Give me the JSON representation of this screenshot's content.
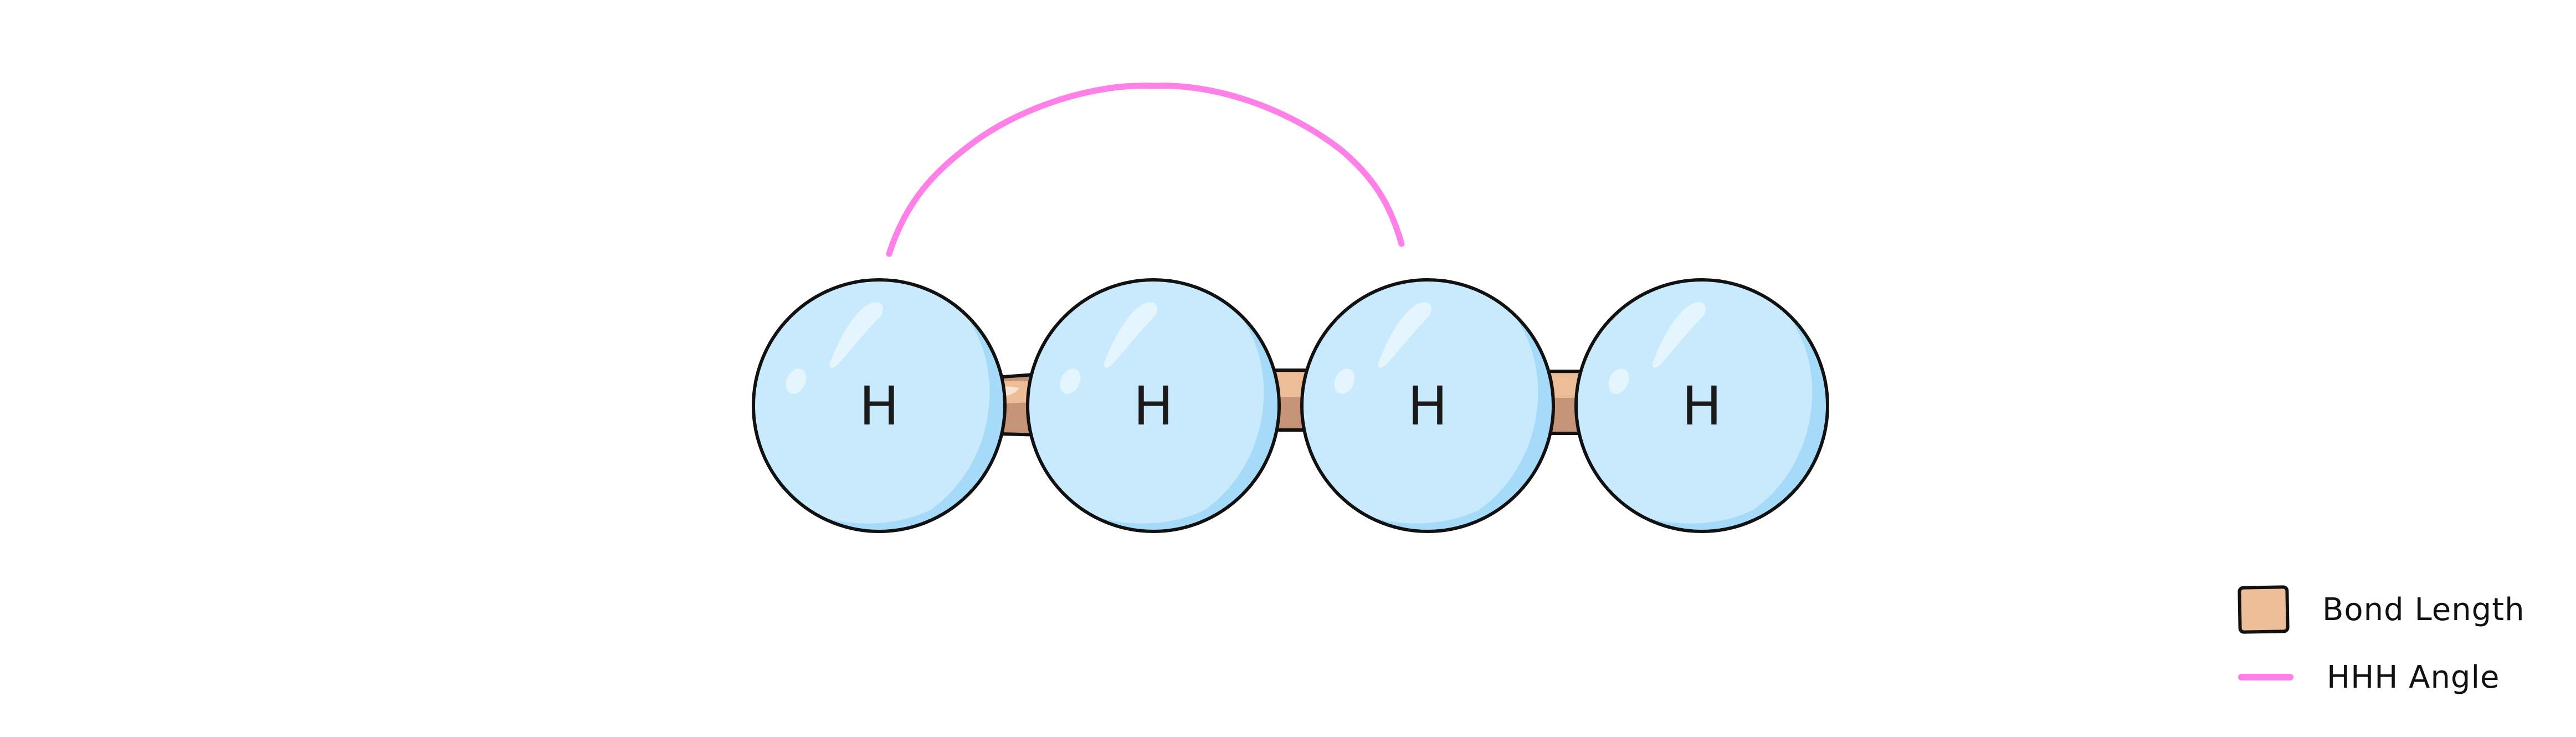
{
  "diagram": {
    "atoms": [
      {
        "label": "H"
      },
      {
        "label": "H"
      },
      {
        "label": "H"
      },
      {
        "label": "H"
      }
    ],
    "bonds": [
      {
        "from": 0,
        "to": 1
      },
      {
        "from": 1,
        "to": 2
      },
      {
        "from": 2,
        "to": 3
      }
    ],
    "angle_marker": {
      "spans_atoms": [
        0,
        2
      ]
    }
  },
  "legend": {
    "items": [
      {
        "label": "Bond Length",
        "icon": "bond-swatch",
        "color": "#edbd98"
      },
      {
        "label": "HHH Angle",
        "icon": "angle-line-swatch",
        "color": "#ff80e6"
      }
    ]
  },
  "colors": {
    "atom_fill": "#c8eafc",
    "atom_shade": "#a5dbf8",
    "atom_highlight": "#e4f5fd",
    "bond_fill": "#edbd98",
    "bond_shade": "#c59378",
    "angle_line": "#ff80e6",
    "outline": "#111111"
  }
}
